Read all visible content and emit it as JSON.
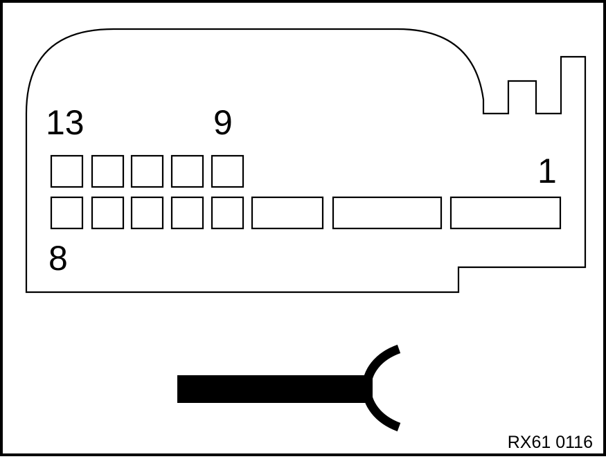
{
  "pin_labels": {
    "pin_13": "13",
    "pin_9": "9",
    "pin_1": "1",
    "pin_8": "8"
  },
  "figure_id": "RX61 0116",
  "colors": {
    "line": "#000000",
    "background": "#ffffff"
  }
}
